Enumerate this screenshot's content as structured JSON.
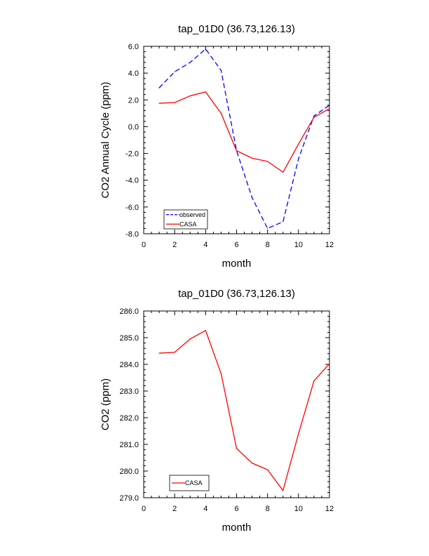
{
  "chart_data": [
    {
      "type": "line",
      "title": "tap_01D0 (36.73,126.13)",
      "xlabel": "month",
      "ylabel": "CO2 Annual Cycle (ppm)",
      "xlim": [
        0,
        12
      ],
      "ylim": [
        -8,
        6
      ],
      "x_ticks": [
        0,
        2,
        4,
        6,
        8,
        10,
        12
      ],
      "x_tick_labels": [
        "0",
        "2",
        "4",
        "6",
        "8",
        "10",
        "12"
      ],
      "y_ticks": [
        -8,
        -6,
        -4,
        -2,
        0,
        2,
        4,
        6
      ],
      "y_tick_labels": [
        "-8.0",
        "-6.0",
        "-4.0",
        "-2.0",
        "0.0",
        "2.0",
        "4.0",
        "6.0"
      ],
      "grid": false,
      "legend_position": "bottom-left",
      "x": [
        1,
        2,
        3,
        4,
        5,
        6,
        7,
        8,
        9,
        10,
        11,
        12
      ],
      "series": [
        {
          "name": "observed",
          "color": "#0000ff",
          "dashed": true,
          "values": [
            2.9,
            4.1,
            4.8,
            5.8,
            4.2,
            -1.8,
            -5.3,
            -7.6,
            -7.1,
            -2.4,
            0.8,
            1.6
          ]
        },
        {
          "name": "CASA",
          "color": "#ff0000",
          "dashed": false,
          "values": [
            1.75,
            1.8,
            2.3,
            2.6,
            1.0,
            -1.8,
            -2.35,
            -2.6,
            -3.4,
            -1.3,
            0.7,
            1.35
          ]
        }
      ]
    },
    {
      "type": "line",
      "title": "tap_01D0 (36.73,126.13)",
      "xlabel": "month",
      "ylabel": "CO2 (ppm)",
      "xlim": [
        0,
        12
      ],
      "ylim": [
        279,
        286
      ],
      "x_ticks": [
        0,
        2,
        4,
        6,
        8,
        10,
        12
      ],
      "x_tick_labels": [
        "0",
        "2",
        "4",
        "6",
        "8",
        "10",
        "12"
      ],
      "y_ticks": [
        279,
        280,
        281,
        282,
        283,
        284,
        285,
        286
      ],
      "y_tick_labels": [
        "279.0",
        "280.0",
        "281.0",
        "282.0",
        "283.0",
        "284.0",
        "285.0",
        "286.0"
      ],
      "grid": false,
      "legend_position": "bottom-left",
      "x": [
        1,
        2,
        3,
        4,
        5,
        6,
        7,
        8,
        9,
        10,
        11,
        12
      ],
      "series": [
        {
          "name": "CASA",
          "color": "#ff0000",
          "dashed": false,
          "values": [
            284.42,
            284.45,
            284.95,
            285.27,
            283.65,
            280.85,
            280.3,
            280.05,
            279.27,
            281.4,
            283.38,
            284.02
          ]
        }
      ]
    }
  ]
}
